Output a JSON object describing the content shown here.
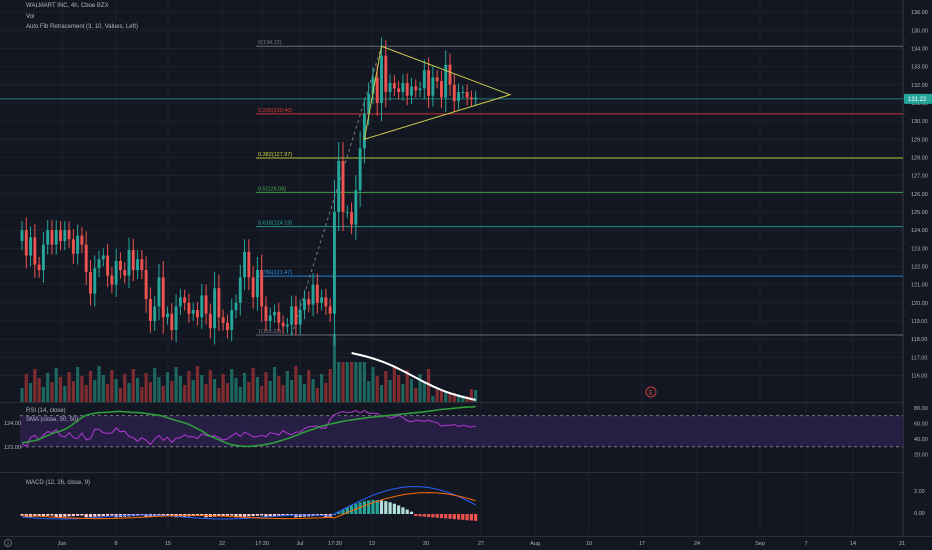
{
  "header": {
    "symbol_line": "WALMART INC, 4h, Cboe BZX",
    "vol_label": "Vol",
    "fib_label": "Auto Fib Retracement (3, 10, Values, Left)"
  },
  "colors": {
    "background": "#131722",
    "up": "#26a69a",
    "down": "#ef5350",
    "triangle": "#c9c94a",
    "rsi_line": "#b23ad6",
    "rsi_band": "#2a1f48",
    "rsi_ma": "#2e9d3a",
    "macd_line": "#2962ff",
    "signal_line": "#ff6d00",
    "price_badge": "#26a69a"
  },
  "price_axis": {
    "ticks": [
      "136.00",
      "135.00",
      "134.00",
      "133.00",
      "132.00",
      "131.00",
      "130.00",
      "129.00",
      "128.00",
      "127.00",
      "126.00",
      "125.00",
      "124.00",
      "123.00",
      "122.00",
      "121.00",
      "120.00",
      "119.00",
      "118.00",
      "117.00",
      "116.00"
    ],
    "current_price": "131.22"
  },
  "fib_levels": [
    {
      "label": "0(134.12)",
      "value": 134.12,
      "color": "#787b86"
    },
    {
      "label": "0.236(130.40)",
      "value": 130.4,
      "color": "#e53935"
    },
    {
      "label": "0.382(127.97)",
      "value": 127.97,
      "color": "#cddc39"
    },
    {
      "label": "0.5(126.08)",
      "value": 126.08,
      "color": "#4caf50"
    },
    {
      "label": "0.618(124.19)",
      "value": 124.19,
      "color": "#26a69a"
    },
    {
      "label": "0.786(121.47)",
      "value": 121.47,
      "color": "#2196f3"
    },
    {
      "label": "1(118.23)",
      "value": 118.23,
      "color": "#787b86"
    }
  ],
  "earnings_marker": "E",
  "rsi_panel": {
    "title": "RSI (14, close)",
    "ma_title": "SMA (close, 50, 50)",
    "right_ticks": [
      "80.00",
      "60.00",
      "40.00",
      "20.00"
    ],
    "left_ticks": [
      "124.00",
      "123.00"
    ]
  },
  "macd_panel": {
    "title": "MACD (12, 26, close, 9)",
    "right_ticks": [
      "2.00",
      "0.00"
    ]
  },
  "time_axis": [
    "Jun",
    "8",
    "15",
    "22",
    "17:30",
    "Jul",
    "17:30",
    "13",
    "20",
    "27",
    "Aug",
    "10",
    "17",
    "24",
    "Sep",
    "7",
    "14",
    "21"
  ],
  "bottom_icons": [
    "2"
  ],
  "chart_data": {
    "type": "candlestick",
    "title": "WALMART INC, 4h, Cboe BZX",
    "indicators": [
      "Vol",
      "Auto Fib Retracement",
      "RSI (14, close)",
      "SMA (close, 50, 50)",
      "MACD (12, 26, close, 9)"
    ],
    "ylim": [
      115.2,
      136.5
    ],
    "closes": [
      124.0,
      122.6,
      123.6,
      122.1,
      121.8,
      123.2,
      124.0,
      123.2,
      124.0,
      123.4,
      124.0,
      123.5,
      122.7,
      123.7,
      123.2,
      121.7,
      120.5,
      121.9,
      122.4,
      122.6,
      121.5,
      121.0,
      122.3,
      121.8,
      121.5,
      122.9,
      121.8,
      122.4,
      121.8,
      120.2,
      119.0,
      119.8,
      121.4,
      119.2,
      119.4,
      118.5,
      119.8,
      120.3,
      120.0,
      119.4,
      119.6,
      119.2,
      120.4,
      119.4,
      118.6,
      120.8,
      119.2,
      118.9,
      118.5,
      119.6,
      120.0,
      121.4,
      122.8,
      121.4,
      120.3,
      121.8,
      119.8,
      119.0,
      119.3,
      119.5,
      118.9,
      118.7,
      118.8,
      119.8,
      118.8,
      119.6,
      120.2,
      119.9,
      121.0,
      120.0,
      120.3,
      119.8,
      119.4,
      125.0,
      127.8,
      125.0,
      125.0,
      124.3,
      126.2,
      128.5,
      130.4,
      131.5,
      132.4,
      131.0,
      133.6,
      131.6,
      132.1,
      131.8,
      131.6,
      132.1,
      131.4,
      131.9,
      131.7,
      131.8,
      132.8,
      131.4,
      132.4,
      132.2,
      131.3,
      133.1,
      132.0,
      131.1,
      131.6,
      131.6,
      131.3,
      131.2,
      131.3
    ],
    "rsi": [
      33.9,
      30.5,
      41.7,
      44.7,
      38.7,
      45.1,
      49.5,
      48.2,
      51.8,
      44.2,
      42.4,
      48.1,
      41.7,
      40.3,
      47.7,
      38.8,
      40.4,
      52.7,
      52.2,
      48.2,
      47.1,
      47.7,
      54.2,
      49.2,
      50.1,
      43.0,
      41.6,
      36.8,
      41.7,
      38.3,
      32.9,
      39.8,
      44.7,
      38.1,
      42.2,
      35.4,
      41.0,
      41.6,
      45.3,
      42.9,
      42.9,
      40.4,
      46.8,
      44.4,
      43.2,
      44.2,
      41.7,
      38.5,
      39.8,
      44.0,
      47.7,
      43.1,
      48.5,
      46.1,
      42.6,
      42.9,
      44.6,
      42.9,
      48.3,
      46.7,
      45.1,
      50.8,
      47.3,
      45.5,
      48.8,
      49.0,
      53.4,
      55.7,
      56.2,
      56.7,
      53.5,
      54.4,
      65.5,
      71.0,
      73.7,
      75.3,
      73.9,
      74.6,
      76.5,
      73.3,
      76.6,
      73.1,
      73.1,
      72.9,
      68.5,
      69.9,
      66.8,
      68.4,
      70.4,
      67.8,
      63.4,
      62.1,
      64.2,
      63.5,
      62.6,
      64.2,
      62.2,
      60.6,
      56.6,
      57.4,
      57.7,
      58.5,
      56.0,
      57.6,
      56.5,
      55.2,
      56.4
    ],
    "rsi_ma": [
      35.0,
      35.8,
      36.8,
      37.9,
      39.4,
      42.1,
      44.6,
      46.7,
      48.5,
      50.1,
      52.4,
      55.3,
      59.5,
      63.6,
      67.5,
      70.5,
      72.0,
      73.2,
      73.8,
      74.1,
      74.4,
      74.8,
      75.3,
      75.5,
      75.0,
      74.6,
      74.0,
      73.9,
      73.6,
      72.8,
      71.9,
      71.2,
      70.5,
      69.3,
      67.4,
      65.5,
      63.8,
      62.3,
      60.5,
      58.7,
      55.9,
      52.9,
      50.3,
      46.7,
      43.6,
      41.2,
      38.9,
      36.6,
      34.1,
      32.6,
      31.7,
      30.8,
      30.5,
      30.4,
      30.8,
      31.4,
      32.2,
      33.0,
      34.1,
      35.3,
      36.9,
      38.6,
      40.4,
      42.4,
      44.3,
      46.6,
      48.8,
      50.7,
      52.6,
      54.5,
      56.4,
      57.8,
      59.2,
      60.3,
      61.6,
      62.7,
      63.8,
      64.5,
      65.3,
      66.1,
      66.8,
      67.6,
      68.2,
      68.7,
      69.3,
      69.9,
      70.5,
      71.0,
      71.6,
      72.1,
      72.7,
      73.3,
      73.8,
      74.3,
      74.9,
      75.7,
      76.4,
      77.3,
      78.1,
      78.6,
      79.0,
      79.6,
      80.1,
      80.8,
      81.0,
      81.3,
      81.6
    ],
    "vol_ma_start_index": 77
  }
}
